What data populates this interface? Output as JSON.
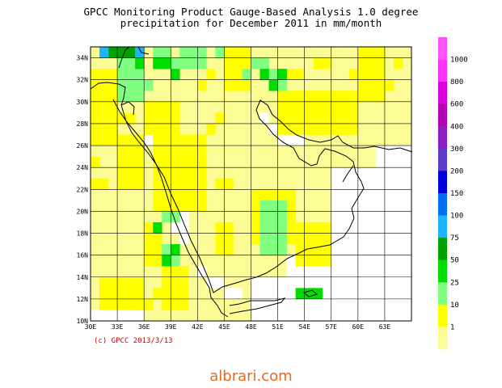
{
  "title_line1": "GPCC Monitoring Product Gauge-Based Analysis 1.0 degree",
  "title_line2": "precipitation for December  2011 in mm/month",
  "copyright": "(c) GPCC 2013/3/13",
  "watermark": "albrari.com",
  "map": {
    "lon_min": 30,
    "lon_max": 66,
    "lat_min": 10,
    "lat_max": 35,
    "lon_ticks": [
      "30E",
      "33E",
      "36E",
      "39E",
      "42E",
      "45E",
      "48E",
      "51E",
      "54E",
      "57E",
      "60E",
      "63E"
    ],
    "lat_ticks": [
      "10N",
      "12N",
      "14N",
      "16N",
      "18N",
      "20N",
      "22N",
      "24N",
      "26N",
      "28N",
      "30N",
      "32N",
      "34N"
    ],
    "grid": true
  },
  "legend": {
    "levels": [
      "1",
      "10",
      "25",
      "50",
      "75",
      "100",
      "150",
      "200",
      "300",
      "400",
      "600",
      "800",
      "1000"
    ],
    "colors": [
      "#fcfc96",
      "#ffff00",
      "#80ff80",
      "#00dd00",
      "#00a000",
      "#1eb4ff",
      "#0070f0",
      "#0000dc",
      "#5a3cc8",
      "#8c1ec8",
      "#b400b4",
      "#dc00dc",
      "#ff33ff",
      "#ff55ff"
    ]
  },
  "colors": {
    "light_yellow": "#fcfc96",
    "yellow": "#ffff00",
    "light_green": "#80ff80",
    "green": "#00dd00",
    "dark_green": "#00a000",
    "blue": "#1eb4ff",
    "no_data": "#ffffff"
  }
}
